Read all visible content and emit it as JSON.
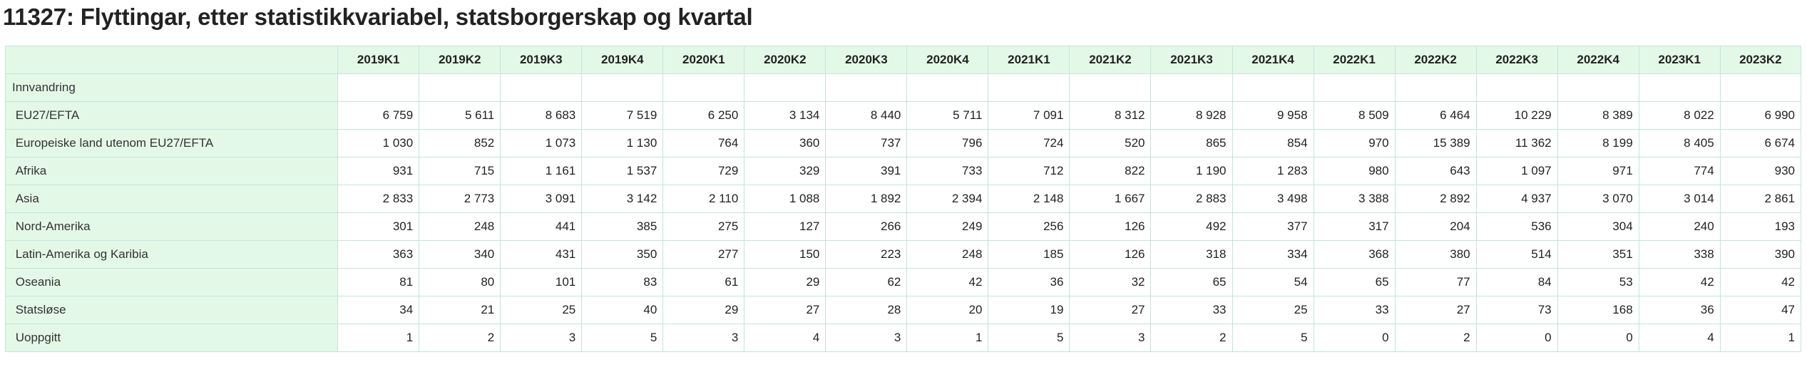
{
  "title": "11327: Flyttingar, etter statistikkvariabel, statsborgerskap og kvartal",
  "colors": {
    "header_bg": "#e4f8e8",
    "border": "#c7e3d9"
  },
  "table": {
    "columns": [
      "2019K1",
      "2019K2",
      "2019K3",
      "2019K4",
      "2020K1",
      "2020K2",
      "2020K3",
      "2020K4",
      "2021K1",
      "2021K2",
      "2021K3",
      "2021K4",
      "2022K1",
      "2022K2",
      "2022K3",
      "2022K4",
      "2023K1",
      "2023K2"
    ],
    "group_label": "Innvandring",
    "rows": [
      {
        "label": "EU27/EFTA",
        "values": [
          "6 759",
          "5 611",
          "8 683",
          "7 519",
          "6 250",
          "3 134",
          "8 440",
          "5 711",
          "7 091",
          "8 312",
          "8 928",
          "9 958",
          "8 509",
          "6 464",
          "10 229",
          "8 389",
          "8 022",
          "6 990"
        ]
      },
      {
        "label": "Europeiske land utenom EU27/EFTA",
        "values": [
          "1 030",
          "852",
          "1 073",
          "1 130",
          "764",
          "360",
          "737",
          "796",
          "724",
          "520",
          "865",
          "854",
          "970",
          "15 389",
          "11 362",
          "8 199",
          "8 405",
          "6 674"
        ]
      },
      {
        "label": "Afrika",
        "values": [
          "931",
          "715",
          "1 161",
          "1 537",
          "729",
          "329",
          "391",
          "733",
          "712",
          "822",
          "1 190",
          "1 283",
          "980",
          "643",
          "1 097",
          "971",
          "774",
          "930"
        ]
      },
      {
        "label": "Asia",
        "values": [
          "2 833",
          "2 773",
          "3 091",
          "3 142",
          "2 110",
          "1 088",
          "1 892",
          "2 394",
          "2 148",
          "1 667",
          "2 883",
          "3 498",
          "3 388",
          "2 892",
          "4 937",
          "3 070",
          "3 014",
          "2 861"
        ]
      },
      {
        "label": "Nord-Amerika",
        "values": [
          "301",
          "248",
          "441",
          "385",
          "275",
          "127",
          "266",
          "249",
          "256",
          "126",
          "492",
          "377",
          "317",
          "204",
          "536",
          "304",
          "240",
          "193"
        ]
      },
      {
        "label": "Latin-Amerika og Karibia",
        "values": [
          "363",
          "340",
          "431",
          "350",
          "277",
          "150",
          "223",
          "248",
          "185",
          "126",
          "318",
          "334",
          "368",
          "380",
          "514",
          "351",
          "338",
          "390"
        ]
      },
      {
        "label": "Oseania",
        "values": [
          "81",
          "80",
          "101",
          "83",
          "61",
          "29",
          "62",
          "42",
          "36",
          "32",
          "65",
          "54",
          "65",
          "77",
          "84",
          "53",
          "42",
          "42"
        ]
      },
      {
        "label": "Statsløse",
        "values": [
          "34",
          "21",
          "25",
          "40",
          "29",
          "27",
          "28",
          "20",
          "19",
          "27",
          "33",
          "25",
          "33",
          "27",
          "73",
          "168",
          "36",
          "47"
        ]
      },
      {
        "label": "Uoppgitt",
        "values": [
          "1",
          "2",
          "3",
          "5",
          "3",
          "4",
          "3",
          "1",
          "5",
          "3",
          "2",
          "5",
          "0",
          "2",
          "0",
          "0",
          "4",
          "1"
        ]
      }
    ]
  }
}
